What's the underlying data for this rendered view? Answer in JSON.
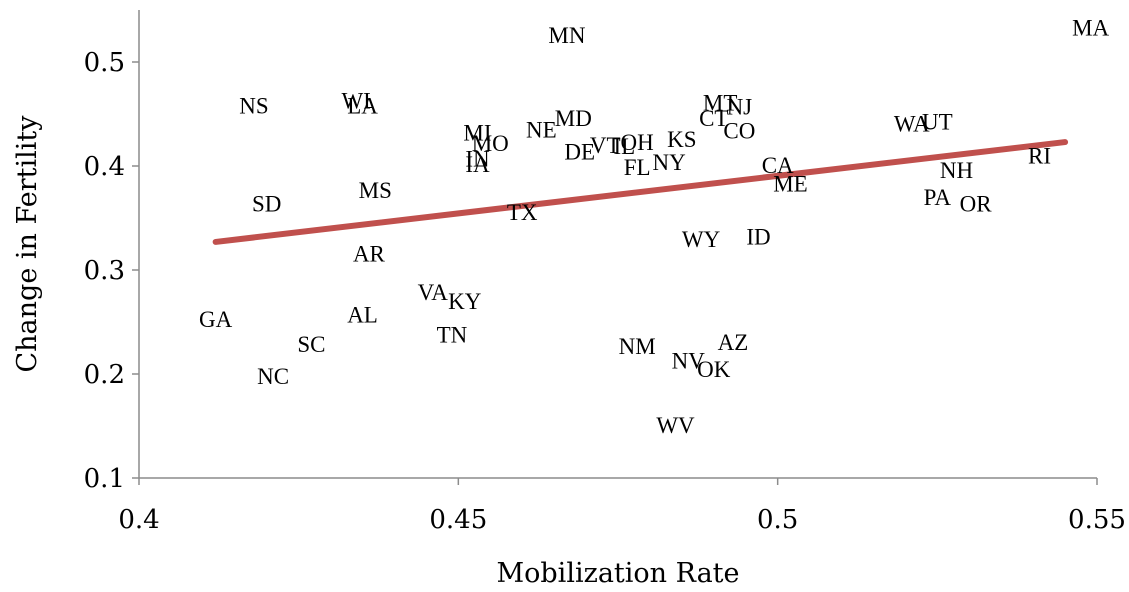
{
  "chart_data": {
    "type": "scatter",
    "title": "",
    "xlabel": "Mobilization Rate",
    "ylabel": "Change in Fertility",
    "xlim": [
      0.4,
      0.55
    ],
    "ylim": [
      0.1,
      0.55
    ],
    "xticks": [
      {
        "value": 0.4,
        "label": "0.4"
      },
      {
        "value": 0.45,
        "label": "0.45"
      },
      {
        "value": 0.5,
        "label": "0.5"
      },
      {
        "value": 0.55,
        "label": "0.55"
      }
    ],
    "yticks": [
      {
        "value": 0.1,
        "label": "0.1"
      },
      {
        "value": 0.2,
        "label": "0.2"
      },
      {
        "value": 0.3,
        "label": "0.3"
      },
      {
        "value": 0.4,
        "label": "0.4"
      },
      {
        "value": 0.5,
        "label": "0.5"
      }
    ],
    "grid": false,
    "legend": "none",
    "marker": "text-label",
    "trendline": {
      "type": "linear",
      "x": [
        0.412,
        0.545
      ],
      "y": [
        0.327,
        0.423
      ],
      "color": "#c0504d"
    },
    "points": [
      {
        "label": "MA",
        "x": 0.549,
        "y": 0.533
      },
      {
        "label": "MN",
        "x": 0.467,
        "y": 0.526
      },
      {
        "label": "NS",
        "x": 0.418,
        "y": 0.458
      },
      {
        "label": "WI",
        "x": 0.434,
        "y": 0.463
      },
      {
        "label": "LA",
        "x": 0.435,
        "y": 0.458
      },
      {
        "label": "MT",
        "x": 0.491,
        "y": 0.461
      },
      {
        "label": "NJ",
        "x": 0.494,
        "y": 0.457
      },
      {
        "label": "CT",
        "x": 0.49,
        "y": 0.446
      },
      {
        "label": "CO",
        "x": 0.494,
        "y": 0.434
      },
      {
        "label": "WA",
        "x": 0.521,
        "y": 0.441
      },
      {
        "label": "UT",
        "x": 0.525,
        "y": 0.443
      },
      {
        "label": "KS",
        "x": 0.485,
        "y": 0.426
      },
      {
        "label": "MD",
        "x": 0.468,
        "y": 0.446
      },
      {
        "label": "NE",
        "x": 0.463,
        "y": 0.435
      },
      {
        "label": "MI",
        "x": 0.453,
        "y": 0.432
      },
      {
        "label": "MO",
        "x": 0.455,
        "y": 0.422
      },
      {
        "label": "OH",
        "x": 0.478,
        "y": 0.423
      },
      {
        "label": "VT",
        "x": 0.473,
        "y": 0.42
      },
      {
        "label": "IL",
        "x": 0.476,
        "y": 0.419
      },
      {
        "label": "DE",
        "x": 0.469,
        "y": 0.414
      },
      {
        "label": "NY",
        "x": 0.483,
        "y": 0.404
      },
      {
        "label": "FL",
        "x": 0.478,
        "y": 0.399
      },
      {
        "label": "IN",
        "x": 0.453,
        "y": 0.407
      },
      {
        "label": "IA",
        "x": 0.453,
        "y": 0.402
      },
      {
        "label": "CA",
        "x": 0.5,
        "y": 0.401
      },
      {
        "label": "ME",
        "x": 0.502,
        "y": 0.383
      },
      {
        "label": "RI",
        "x": 0.541,
        "y": 0.41
      },
      {
        "label": "NH",
        "x": 0.528,
        "y": 0.396
      },
      {
        "label": "PA",
        "x": 0.525,
        "y": 0.37
      },
      {
        "label": "OR",
        "x": 0.531,
        "y": 0.364
      },
      {
        "label": "SD",
        "x": 0.42,
        "y": 0.364
      },
      {
        "label": "MS",
        "x": 0.437,
        "y": 0.377
      },
      {
        "label": "TX",
        "x": 0.46,
        "y": 0.356
      },
      {
        "label": "WY",
        "x": 0.488,
        "y": 0.33
      },
      {
        "label": "ID",
        "x": 0.497,
        "y": 0.332
      },
      {
        "label": "AR",
        "x": 0.436,
        "y": 0.316
      },
      {
        "label": "VA",
        "x": 0.446,
        "y": 0.279
      },
      {
        "label": "KY",
        "x": 0.451,
        "y": 0.27
      },
      {
        "label": "GA",
        "x": 0.412,
        "y": 0.253
      },
      {
        "label": "AL",
        "x": 0.435,
        "y": 0.257
      },
      {
        "label": "TN",
        "x": 0.449,
        "y": 0.238
      },
      {
        "label": "SC",
        "x": 0.427,
        "y": 0.229
      },
      {
        "label": "NM",
        "x": 0.478,
        "y": 0.227
      },
      {
        "label": "AZ",
        "x": 0.493,
        "y": 0.231
      },
      {
        "label": "NV",
        "x": 0.486,
        "y": 0.213
      },
      {
        "label": "OK",
        "x": 0.49,
        "y": 0.205
      },
      {
        "label": "NC",
        "x": 0.421,
        "y": 0.198
      },
      {
        "label": "WV",
        "x": 0.484,
        "y": 0.151
      }
    ]
  }
}
